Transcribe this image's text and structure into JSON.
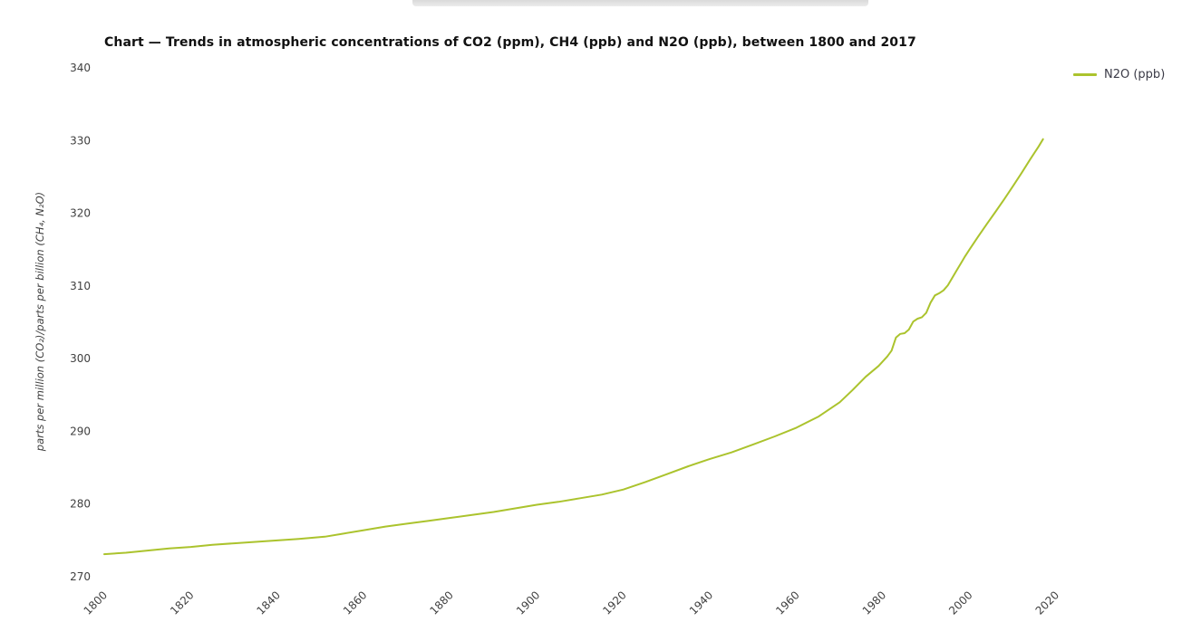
{
  "window": {
    "background": "#ffffff"
  },
  "overlay_bar": {
    "color_top": "#cfcfcf",
    "color_bottom": "#ececec"
  },
  "legend": {
    "items": [
      {
        "label": "N2O (ppb)",
        "color": "#abc32d"
      }
    ]
  },
  "chart_data": {
    "type": "line",
    "title": "Chart — Trends in atmospheric concentrations of CO2 (ppm), CH4 (ppb) and N2O (ppb), between 1800 and 2017",
    "xlabel": "",
    "ylabel": "parts per million (CO₂)/parts per billion (CH₄, N₂O)",
    "xlim": [
      1800,
      2020
    ],
    "ylim": [
      270,
      340
    ],
    "x_ticks": [
      1800,
      1820,
      1840,
      1860,
      1880,
      1900,
      1920,
      1940,
      1960,
      1980,
      2000,
      2020
    ],
    "y_ticks": [
      270,
      280,
      290,
      300,
      310,
      320,
      330,
      340
    ],
    "grid": false,
    "legend_position": "top-right",
    "series": [
      {
        "name": "N2O (ppb)",
        "color": "#abc32d",
        "x": [
          1800,
          1805,
          1810,
          1815,
          1820,
          1825,
          1830,
          1835,
          1840,
          1845,
          1851,
          1855,
          1860,
          1865,
          1870,
          1875,
          1880,
          1885,
          1890,
          1895,
          1900,
          1905,
          1910,
          1915,
          1920,
          1925,
          1930,
          1935,
          1940,
          1945,
          1950,
          1955,
          1960,
          1965,
          1970,
          1973,
          1976,
          1979,
          1981,
          1982,
          1983,
          1984,
          1985,
          1986,
          1987,
          1988,
          1989,
          1990,
          1991,
          1992,
          1993,
          1994,
          1995,
          1996,
          1997,
          1998,
          1999,
          2000,
          2002,
          2004,
          2006,
          2008,
          2010,
          2012,
          2014,
          2016,
          2017
        ],
        "values": [
          273.1,
          273.3,
          273.6,
          273.9,
          274.1,
          274.4,
          274.6,
          274.8,
          275.0,
          275.2,
          275.5,
          275.9,
          276.4,
          276.9,
          277.3,
          277.7,
          278.1,
          278.5,
          278.9,
          279.4,
          279.9,
          280.3,
          280.8,
          281.3,
          282.0,
          283.0,
          284.1,
          285.2,
          286.2,
          287.1,
          288.2,
          289.3,
          290.5,
          292.0,
          294.0,
          295.7,
          297.5,
          299.0,
          300.3,
          301.1,
          302.9,
          303.4,
          303.5,
          304.0,
          305.1,
          305.5,
          305.7,
          306.3,
          307.7,
          308.7,
          309.0,
          309.4,
          310.1,
          311.1,
          312.1,
          313.1,
          314.1,
          315.0,
          316.8,
          318.5,
          320.2,
          321.9,
          323.7,
          325.5,
          327.4,
          329.2,
          330.2
        ]
      }
    ]
  }
}
